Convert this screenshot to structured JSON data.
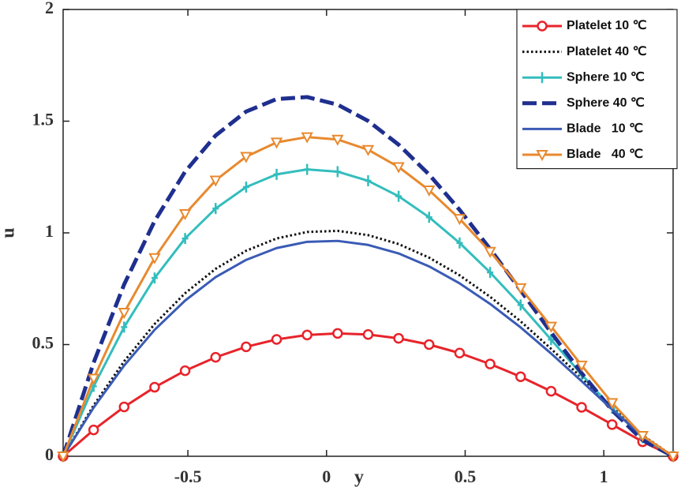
{
  "chart_data": {
    "type": "line",
    "x_label": "y",
    "y_label": "u",
    "xlim": [
      -0.95,
      1.25
    ],
    "ylim": [
      0,
      2
    ],
    "xticks": [
      -0.5,
      0,
      0.5,
      1
    ],
    "yticks": [
      0,
      0.5,
      1,
      1.5,
      2
    ],
    "legend": "upper right",
    "x": [
      -0.95,
      -0.84,
      -0.73,
      -0.62,
      -0.51,
      -0.4,
      -0.29,
      -0.18,
      -0.07,
      0.04,
      0.15,
      0.26,
      0.37,
      0.48,
      0.59,
      0.7,
      0.81,
      0.92,
      1.03,
      1.14,
      1.25
    ],
    "series": [
      {
        "name": "Platelet 10 ℃",
        "color": "#e8232a",
        "marker": "circle",
        "dash": "solid",
        "values": [
          0,
          0.118,
          0.221,
          0.309,
          0.383,
          0.443,
          0.49,
          0.523,
          0.543,
          0.55,
          0.545,
          0.528,
          0.5,
          0.462,
          0.413,
          0.356,
          0.291,
          0.219,
          0.142,
          0.065,
          0
        ]
      },
      {
        "name": "Platelet 40 ℃",
        "color": "#111111",
        "marker": "none",
        "dash": "dotted",
        "values": [
          0,
          0.228,
          0.425,
          0.592,
          0.73,
          0.839,
          0.92,
          0.975,
          1.004,
          1.009,
          0.99,
          0.95,
          0.889,
          0.81,
          0.714,
          0.604,
          0.481,
          0.352,
          0.22,
          0.094,
          0
        ]
      },
      {
        "name": "Sphere 10 ℃",
        "color": "#33bdbd",
        "marker": "plus",
        "dash": "solid",
        "values": [
          0,
          0.313,
          0.578,
          0.798,
          0.975,
          1.109,
          1.205,
          1.262,
          1.284,
          1.274,
          1.233,
          1.164,
          1.07,
          0.955,
          0.823,
          0.677,
          0.522,
          0.366,
          0.215,
          0.083,
          0
        ]
      },
      {
        "name": "Sphere 40 ℃",
        "color": "#1f2f8f",
        "marker": "none",
        "dash": "dashed",
        "values": [
          0,
          0.419,
          0.769,
          1.053,
          1.274,
          1.436,
          1.543,
          1.599,
          1.608,
          1.574,
          1.501,
          1.395,
          1.261,
          1.103,
          0.928,
          0.743,
          0.554,
          0.372,
          0.206,
          0.072,
          0
        ]
      },
      {
        "name": "Blade   10 ℃",
        "color": "#3a5bb5",
        "marker": "none",
        "dash": "solid",
        "values": [
          0,
          0.218,
          0.406,
          0.566,
          0.697,
          0.802,
          0.879,
          0.932,
          0.96,
          0.964,
          0.946,
          0.908,
          0.85,
          0.774,
          0.682,
          0.577,
          0.46,
          0.336,
          0.21,
          0.09,
          0
        ]
      },
      {
        "name": "Blade   40 ℃",
        "color": "#e8892e",
        "marker": "triangle-down",
        "dash": "solid",
        "values": [
          0,
          0.348,
          0.643,
          0.888,
          1.085,
          1.235,
          1.341,
          1.405,
          1.429,
          1.418,
          1.372,
          1.295,
          1.191,
          1.063,
          0.916,
          0.753,
          0.581,
          0.407,
          0.239,
          0.092,
          0
        ]
      }
    ]
  }
}
